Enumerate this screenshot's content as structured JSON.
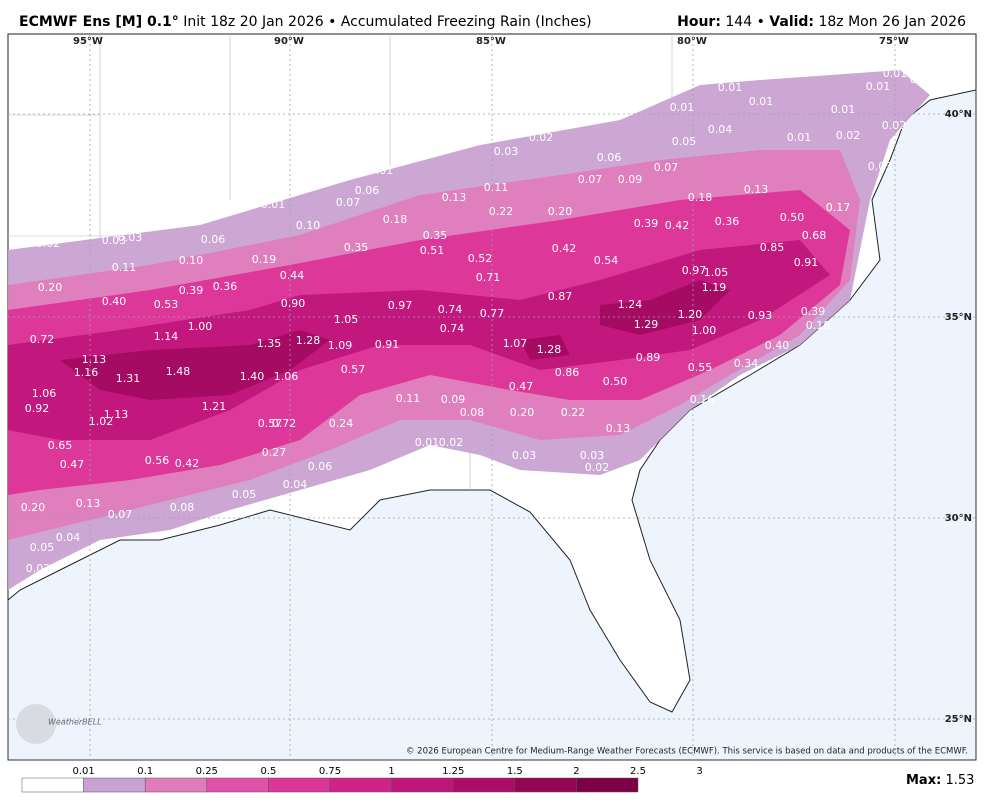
{
  "header": {
    "model": "ECMWF Ens [M] 0.1°",
    "init": "Init 18z 20 Jan 2026",
    "separator": "•",
    "field": "Accumulated Freezing Rain (Inches)",
    "hour_label": "Hour:",
    "hour": "144",
    "valid_label": "Valid:",
    "valid": "18z Mon 26 Jan 2026"
  },
  "map": {
    "lon_labels": [
      "95°W",
      "90°W",
      "85°W",
      "80°W",
      "75°W"
    ],
    "lat_labels": [
      "40°N",
      "35°N",
      "30°N",
      "25°N"
    ],
    "values": [
      "0.01",
      "0.01",
      "0.01",
      "0.01",
      "0.01",
      "0.01",
      "0.01",
      "0.02",
      "0.04",
      "0.05",
      "0.01",
      "0.02",
      "0.02",
      "0.03",
      "0.06",
      "0.03",
      "0.07",
      "0.07",
      "0.09",
      "0.01",
      "0.06",
      "0.07",
      "0.01",
      "0.11",
      "0.13",
      "0.18",
      "0.13",
      "0.22",
      "0.20",
      "0.18",
      "0.10",
      "0.39",
      "0.42",
      "0.36",
      "0.50",
      "0.17",
      "0.68",
      "0.35",
      "0.35",
      "0.51",
      "0.42",
      "0.06",
      "0.02",
      "0.03",
      "0.03",
      "0.85",
      "0.52",
      "0.54",
      "0.10",
      "0.19",
      "0.11",
      "0.97",
      "1.05",
      "0.91",
      "0.71",
      "0.44",
      "0.20",
      "1.19",
      "0.39",
      "0.36",
      "0.40",
      "0.53",
      "0.90",
      "0.97",
      "0.87",
      "1.24",
      "0.74",
      "0.77",
      "1.20",
      "0.93",
      "0.39",
      "0.18",
      "1.05",
      "1.00",
      "0.74",
      "1.29",
      "1.00",
      "0.72",
      "1.14",
      "1.28",
      "1.09",
      "0.91",
      "1.35",
      "1.07",
      "1.28",
      "0.40",
      "1.13",
      "0.89",
      "1.16",
      "1.48",
      "0.57",
      "1.40",
      "1.06",
      "1.31",
      "0.55",
      "0.34",
      "0.86",
      "0.50",
      "0.47",
      "1.06",
      "0.92",
      "1.13",
      "1.02",
      "1.21",
      "0.11",
      "0.09",
      "0.16",
      "0.08",
      "0.20",
      "0.22",
      "0.57",
      "0.72",
      "0.24",
      "0.13",
      "0.01",
      "0.02",
      "0.65",
      "0.27",
      "0.56",
      "0.42",
      "0.47",
      "0.03",
      "0.03",
      "0.06",
      "0.02",
      "0.04",
      "0.05",
      "0.20",
      "0.13",
      "0.08",
      "0.07",
      "0.04",
      "0.05",
      "0.02"
    ],
    "copyright": "© 2026 European Centre for Medium-Range Weather Forecasts (ECMWF). This service is based on data and products of the ECMWF.",
    "logo": "WeatherBELL"
  },
  "legend": {
    "ticks": [
      "0.01",
      "0.1",
      "0.25",
      "0.5",
      "0.75",
      "1",
      "1.25",
      "1.5",
      "2",
      "2.5",
      "3"
    ],
    "colors": [
      "#ffffff",
      "#c9a2d2",
      "#e07cbc",
      "#e052aa",
      "#dc3597",
      "#d02388",
      "#c0157a",
      "#ac0c68",
      "#950556",
      "#7c0046"
    ],
    "max_label": "Max:",
    "max": "1.53"
  }
}
